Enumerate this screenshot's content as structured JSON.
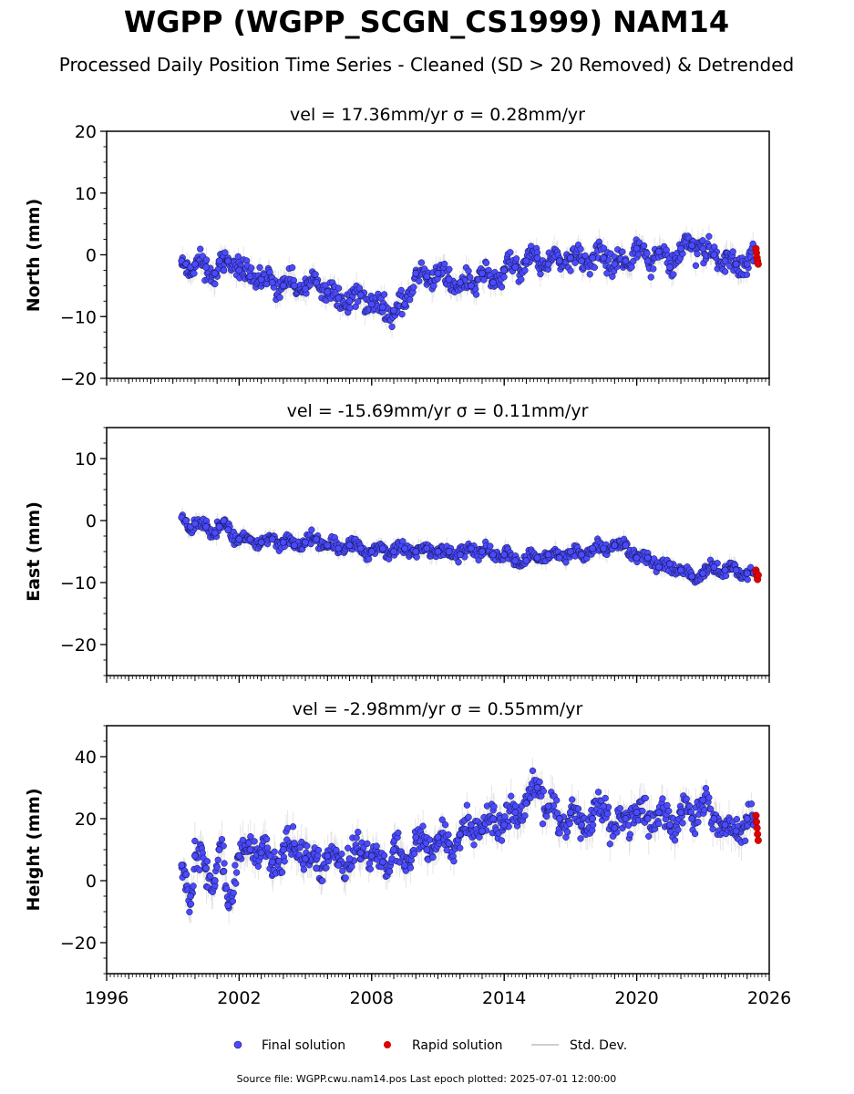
{
  "figure": {
    "title": "WGPP (WGPP_SCGN_CS1999) NAM14",
    "subtitle": "Processed Daily Position Time Series - Cleaned (SD > 20 Removed) & Detrended",
    "footer": "Source file: WGPP.cwu.nam14.pos  Last epoch plotted: 2025-07-01 12:00:00",
    "legend": {
      "placement": "bottom-center",
      "items": [
        {
          "label": "Final solution",
          "color": "#4a4aff",
          "marker": "circle"
        },
        {
          "label": "Rapid solution",
          "color": "#e00000",
          "marker": "circle"
        },
        {
          "label": "Std. Dev.",
          "color": "#cfcfcf",
          "marker": "line"
        }
      ]
    },
    "xaxis": {
      "range": [
        1996,
        2026
      ],
      "ticks": [
        1996,
        2002,
        2008,
        2014,
        2020,
        2026
      ],
      "tick_labels": [
        "1996",
        "2002",
        "2008",
        "2014",
        "2020",
        "2026"
      ]
    }
  },
  "chart_data": [
    {
      "type": "scatter",
      "component": "north",
      "title": "vel = 17.36mm/yr   σ = 0.28mm/yr",
      "ylabel": "North (mm)",
      "ylim": [
        -20,
        20
      ],
      "yticks": [
        -20,
        -10,
        0,
        10,
        20
      ],
      "ytick_labels": [
        "−20",
        "−10",
        "0",
        "10",
        "20"
      ],
      "xlim": [
        1996,
        2026
      ],
      "grid": false,
      "series": [
        {
          "name": "Final solution",
          "color": "#4a4aff",
          "sd_color": "#cfcfcf",
          "x": [
            1999.4,
            1999.6,
            1999.8,
            2000.0,
            2000.5,
            2000.9,
            2001.1,
            2001.3,
            2001.5,
            2002.0,
            2002.5,
            2003.0,
            2003.5,
            2004.0,
            2004.5,
            2005.0,
            2005.5,
            2006.0,
            2006.5,
            2007.0,
            2007.5,
            2008.0,
            2008.5,
            2009.0,
            2009.5,
            2010.0,
            2010.5,
            2011.0,
            2011.5,
            2012.0,
            2012.5,
            2013.0,
            2013.5,
            2014.0,
            2014.5,
            2015.0,
            2015.5,
            2016.0,
            2016.5,
            2017.0,
            2017.5,
            2018.0,
            2018.5,
            2019.0,
            2019.5,
            2020.0,
            2020.5,
            2021.0,
            2021.5,
            2022.0,
            2022.5,
            2023.0,
            2023.5,
            2024.0,
            2024.5,
            2025.0,
            2025.3
          ],
          "y": [
            -1.0,
            -1.5,
            -2.0,
            -1.5,
            -2.0,
            -3.0,
            -1.0,
            -2.5,
            -1.0,
            -2.5,
            -3.5,
            -4.0,
            -4.5,
            -5.0,
            -5.0,
            -5.5,
            -4.5,
            -6.0,
            -7.0,
            -7.5,
            -6.5,
            -8.0,
            -8.5,
            -9.0,
            -8.0,
            -3.0,
            -3.5,
            -3.0,
            -4.0,
            -4.5,
            -5.0,
            -3.0,
            -4.5,
            -2.5,
            -2.0,
            -1.0,
            -0.5,
            -1.5,
            -1.0,
            -0.5,
            -1.0,
            -0.5,
            -0.5,
            -1.5,
            -1.0,
            1.0,
            -1.0,
            0.5,
            -2.0,
            1.0,
            1.5,
            1.0,
            0.0,
            -1.0,
            -1.5,
            -1.5,
            -1.0
          ]
        },
        {
          "name": "Rapid solution",
          "color": "#e00000",
          "x": [
            2025.4,
            2025.42,
            2025.45,
            2025.47,
            2025.5
          ],
          "y": [
            1.0,
            0.3,
            -0.5,
            -1.0,
            -1.5
          ]
        }
      ]
    },
    {
      "type": "scatter",
      "component": "east",
      "title": "vel = -15.69mm/yr   σ = 0.11mm/yr",
      "ylabel": "East (mm)",
      "ylim": [
        -25,
        15
      ],
      "yticks": [
        -20,
        -10,
        0,
        10
      ],
      "ytick_labels": [
        "−20",
        "−10",
        "0",
        "10"
      ],
      "xlim": [
        1996,
        2026
      ],
      "grid": false,
      "series": [
        {
          "name": "Final solution",
          "color": "#4a4aff",
          "sd_color": "#cfcfcf",
          "x": [
            1999.4,
            1999.6,
            1999.8,
            2000.0,
            2000.5,
            2000.9,
            2001.1,
            2001.3,
            2001.5,
            2002.0,
            2002.5,
            2003.0,
            2003.5,
            2004.0,
            2004.5,
            2005.0,
            2005.5,
            2006.0,
            2006.5,
            2007.0,
            2007.5,
            2008.0,
            2008.5,
            2009.0,
            2009.5,
            2010.0,
            2010.5,
            2011.0,
            2011.5,
            2012.0,
            2012.5,
            2013.0,
            2013.5,
            2014.0,
            2014.5,
            2015.0,
            2015.5,
            2016.0,
            2016.5,
            2017.0,
            2017.5,
            2018.0,
            2018.5,
            2019.0,
            2019.5,
            2020.0,
            2020.5,
            2021.0,
            2021.5,
            2022.0,
            2022.5,
            2023.0,
            2023.5,
            2024.0,
            2024.5,
            2025.0,
            2025.3
          ],
          "y": [
            0.5,
            0.0,
            -1.0,
            -0.5,
            -1.0,
            -2.0,
            -1.0,
            0.0,
            -1.5,
            -3.0,
            -3.0,
            -3.5,
            -3.0,
            -3.5,
            -4.0,
            -3.5,
            -3.0,
            -4.0,
            -4.5,
            -4.0,
            -4.5,
            -5.0,
            -4.5,
            -5.0,
            -4.5,
            -5.0,
            -4.5,
            -5.0,
            -5.0,
            -5.5,
            -4.5,
            -5.0,
            -5.5,
            -5.5,
            -6.5,
            -6.5,
            -6.0,
            -5.5,
            -6.0,
            -5.0,
            -5.5,
            -4.5,
            -4.5,
            -4.0,
            -4.0,
            -6.0,
            -6.0,
            -7.5,
            -7.0,
            -8.0,
            -9.0,
            -8.5,
            -7.5,
            -8.0,
            -8.0,
            -8.5,
            -8.5
          ]
        },
        {
          "name": "Rapid solution",
          "color": "#e00000",
          "x": [
            2025.4,
            2025.42,
            2025.45,
            2025.47,
            2025.5
          ],
          "y": [
            -8.0,
            -8.5,
            -9.0,
            -9.5,
            -8.8
          ]
        }
      ]
    },
    {
      "type": "scatter",
      "component": "height",
      "title": "vel = -2.98mm/yr   σ = 0.55mm/yr",
      "ylabel": "Height (mm)",
      "ylim": [
        -30,
        50
      ],
      "yticks": [
        -20,
        0,
        20,
        40
      ],
      "ytick_labels": [
        "−20",
        "0",
        "20",
        "40"
      ],
      "xlim": [
        1996,
        2026
      ],
      "grid": false,
      "series": [
        {
          "name": "Final solution",
          "color": "#4a4aff",
          "sd_color": "#cfcfcf",
          "x": [
            1999.4,
            1999.6,
            1999.8,
            2000.0,
            2000.5,
            2000.9,
            2001.1,
            2001.3,
            2001.5,
            2002.0,
            2002.5,
            2003.0,
            2003.5,
            2004.0,
            2004.5,
            2005.0,
            2005.5,
            2006.0,
            2006.5,
            2007.0,
            2007.5,
            2008.0,
            2008.5,
            2009.0,
            2009.5,
            2010.0,
            2010.5,
            2011.0,
            2011.5,
            2012.0,
            2012.5,
            2013.0,
            2013.5,
            2014.0,
            2014.5,
            2015.0,
            2015.5,
            2016.0,
            2016.5,
            2017.0,
            2017.5,
            2018.0,
            2018.5,
            2019.0,
            2019.5,
            2020.0,
            2020.5,
            2021.0,
            2021.5,
            2022.0,
            2022.5,
            2023.0,
            2023.5,
            2024.0,
            2024.5,
            2025.0,
            2025.3
          ],
          "y": [
            5.0,
            2.0,
            -5.0,
            8.0,
            4.0,
            0.0,
            10.0,
            3.0,
            -8.0,
            8.0,
            10.0,
            9.0,
            6.0,
            10.0,
            12.0,
            7.0,
            4.0,
            8.0,
            5.0,
            7.0,
            9.0,
            8.0,
            6.0,
            10.0,
            5.0,
            14.0,
            10.0,
            14.0,
            12.0,
            15.0,
            18.0,
            16.0,
            20.0,
            18.0,
            22.0,
            25.0,
            30.0,
            24.0,
            20.0,
            22.0,
            18.0,
            20.0,
            24.0,
            17.0,
            20.0,
            22.0,
            20.0,
            22.0,
            18.0,
            22.0,
            20.0,
            26.0,
            20.0,
            18.0,
            16.0,
            20.0,
            18.0
          ]
        },
        {
          "name": "Rapid solution",
          "color": "#e00000",
          "x": [
            2025.4,
            2025.42,
            2025.45,
            2025.47,
            2025.5
          ],
          "y": [
            21.0,
            19.0,
            17.0,
            15.0,
            13.0
          ]
        }
      ]
    }
  ]
}
